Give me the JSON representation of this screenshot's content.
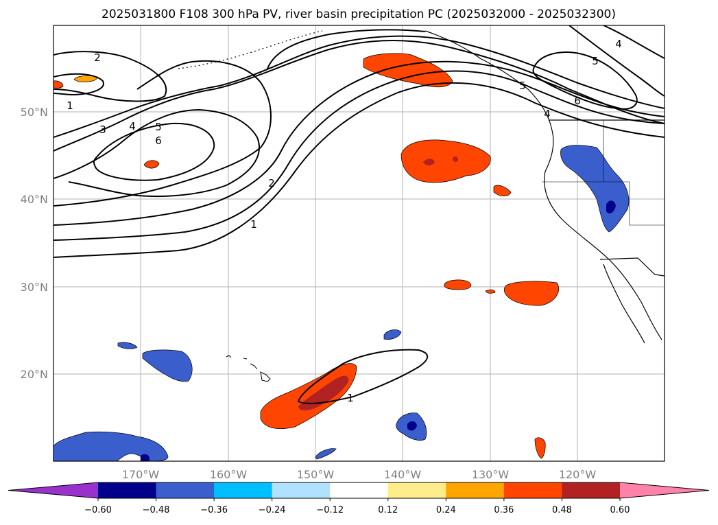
{
  "title": "2025031800 F108 300 hPa PV, river basin precipitation PC (2025032000 - 2025032300)",
  "map": {
    "lat_labels": [
      "50°N",
      "40°N",
      "30°N",
      "20°N"
    ],
    "lon_labels": [
      "170°W",
      "160°W",
      "150°W",
      "140°W",
      "130°W",
      "120°W"
    ],
    "contour_labels": [
      "1",
      "2",
      "3",
      "4",
      "5",
      "6",
      "2",
      "1",
      "5",
      "4",
      "6",
      "5",
      "4",
      "1"
    ]
  },
  "colorbar": {
    "tick_labels": [
      "−0.60",
      "−0.48",
      "−0.36",
      "−0.24",
      "−0.12",
      "0.12",
      "0.24",
      "0.36",
      "0.48",
      "0.60"
    ],
    "colors": [
      "#9932cc",
      "#00008b",
      "#3a5fcd",
      "#00bfff",
      "#b0e2ff",
      "#ffffff",
      "#ffec8b",
      "#ffa500",
      "#ff4500",
      "#b22222",
      "#ff82ab"
    ]
  },
  "colors": {
    "neg_strong": "#00008b",
    "neg_mid": "#3a5fcd",
    "neg_edge": "#00bfff",
    "pos_edge": "#ffec8b",
    "pos_mid": "#ff4500",
    "pos_strong": "#b22222"
  }
}
